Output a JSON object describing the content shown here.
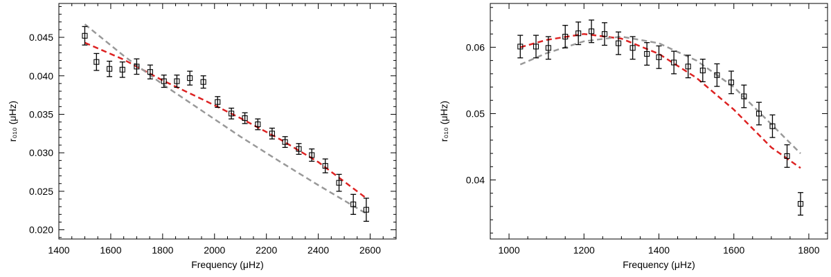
{
  "chart_data": [
    {
      "type": "scatter",
      "title": "",
      "xlabel": "Frequency (μHz)",
      "ylabel": "r₀₁₀ (μHz)",
      "xlim": [
        1400,
        2700
      ],
      "ylim": [
        0.0188,
        0.0494
      ],
      "xticks": [
        1400,
        1600,
        1800,
        2000,
        2200,
        2400,
        2600
      ],
      "xtick_labels": [
        "1400",
        "1600",
        "1800",
        "2000",
        "2200",
        "2400",
        "2600"
      ],
      "yticks": [
        0.02,
        0.025,
        0.03,
        0.035,
        0.04,
        0.045
      ],
      "ytick_labels": [
        "0.020",
        "0.025",
        "0.030",
        "0.035",
        "0.040",
        "0.045"
      ],
      "xminor_step": 50,
      "yminor_step": 0.001,
      "series": [
        {
          "name": "observed",
          "kind": "points_with_errorbars",
          "color": "#000000",
          "x": [
            1500,
            1545,
            1595,
            1645,
            1700,
            1752,
            1805,
            1855,
            1905,
            1957,
            2012,
            2065,
            2117,
            2167,
            2222,
            2272,
            2325,
            2375,
            2427,
            2480,
            2535,
            2585
          ],
          "y": [
            0.0452,
            0.0418,
            0.0409,
            0.0408,
            0.0412,
            0.0405,
            0.0393,
            0.0393,
            0.0397,
            0.0392,
            0.0366,
            0.0351,
            0.0345,
            0.0337,
            0.0325,
            0.0314,
            0.0305,
            0.0297,
            0.0283,
            0.0261,
            0.0233,
            0.0226
          ],
          "err": [
            0.0012,
            0.0011,
            0.001,
            0.001,
            0.001,
            0.0009,
            0.0008,
            0.0008,
            0.0009,
            0.0008,
            0.0007,
            0.0007,
            0.0007,
            0.0007,
            0.0007,
            0.0007,
            0.0007,
            0.0008,
            0.0009,
            0.0011,
            0.0013,
            0.0015
          ]
        },
        {
          "name": "red model",
          "kind": "dashed_line",
          "color": "#dd2222",
          "x": [
            1500,
            1650,
            1800,
            1950,
            2100,
            2250,
            2400,
            2585
          ],
          "y": [
            0.0443,
            0.0421,
            0.0394,
            0.037,
            0.0345,
            0.0318,
            0.0288,
            0.0241
          ]
        },
        {
          "name": "grey model",
          "kind": "dashed_line",
          "color": "#999999",
          "x": [
            1500,
            1650,
            1800,
            1950,
            2100,
            2250,
            2400,
            2585
          ],
          "y": [
            0.0467,
            0.0426,
            0.0389,
            0.0355,
            0.0321,
            0.0289,
            0.0258,
            0.0221
          ]
        }
      ]
    },
    {
      "type": "scatter",
      "title": "",
      "xlabel": "Frequency (μHz)",
      "ylabel": "r₀₁₀ (μHz)",
      "xlim": [
        950,
        1850
      ],
      "ylim": [
        0.0311,
        0.0666
      ],
      "xticks": [
        1000,
        1200,
        1400,
        1600,
        1800
      ],
      "xtick_labels": [
        "1000",
        "1200",
        "1400",
        "1600",
        "1800"
      ],
      "yticks": [
        0.04,
        0.05,
        0.06
      ],
      "ytick_labels": [
        "0.04",
        "0.05",
        "0.06"
      ],
      "xminor_step": 50,
      "yminor_step": 0.002,
      "series": [
        {
          "name": "observed",
          "kind": "points_with_errorbars",
          "color": "#000000",
          "x": [
            1030,
            1072,
            1105,
            1150,
            1185,
            1220,
            1255,
            1292,
            1330,
            1368,
            1400,
            1440,
            1478,
            1517,
            1555,
            1593,
            1627,
            1667,
            1703,
            1742,
            1778
          ],
          "y": [
            0.0601,
            0.0601,
            0.0599,
            0.0616,
            0.0621,
            0.0624,
            0.062,
            0.0606,
            0.0599,
            0.059,
            0.0585,
            0.0577,
            0.0571,
            0.0565,
            0.0558,
            0.0547,
            0.0526,
            0.05,
            0.0481,
            0.0436,
            0.0364
          ]
        },
        {
          "name": "red model",
          "kind": "dashed_line",
          "color": "#dd2222",
          "x": [
            1030,
            1100,
            1200,
            1300,
            1400,
            1500,
            1600,
            1700,
            1778
          ],
          "y": [
            0.06,
            0.0611,
            0.062,
            0.0613,
            0.059,
            0.0554,
            0.0506,
            0.0449,
            0.0418
          ]
        },
        {
          "name": "grey model",
          "kind": "dashed_line",
          "color": "#999999",
          "x": [
            1030,
            1100,
            1200,
            1300,
            1400,
            1500,
            1600,
            1700,
            1778
          ],
          "y": [
            0.0574,
            0.0591,
            0.0609,
            0.0616,
            0.0606,
            0.058,
            0.054,
            0.0484,
            0.044
          ]
        }
      ]
    }
  ]
}
